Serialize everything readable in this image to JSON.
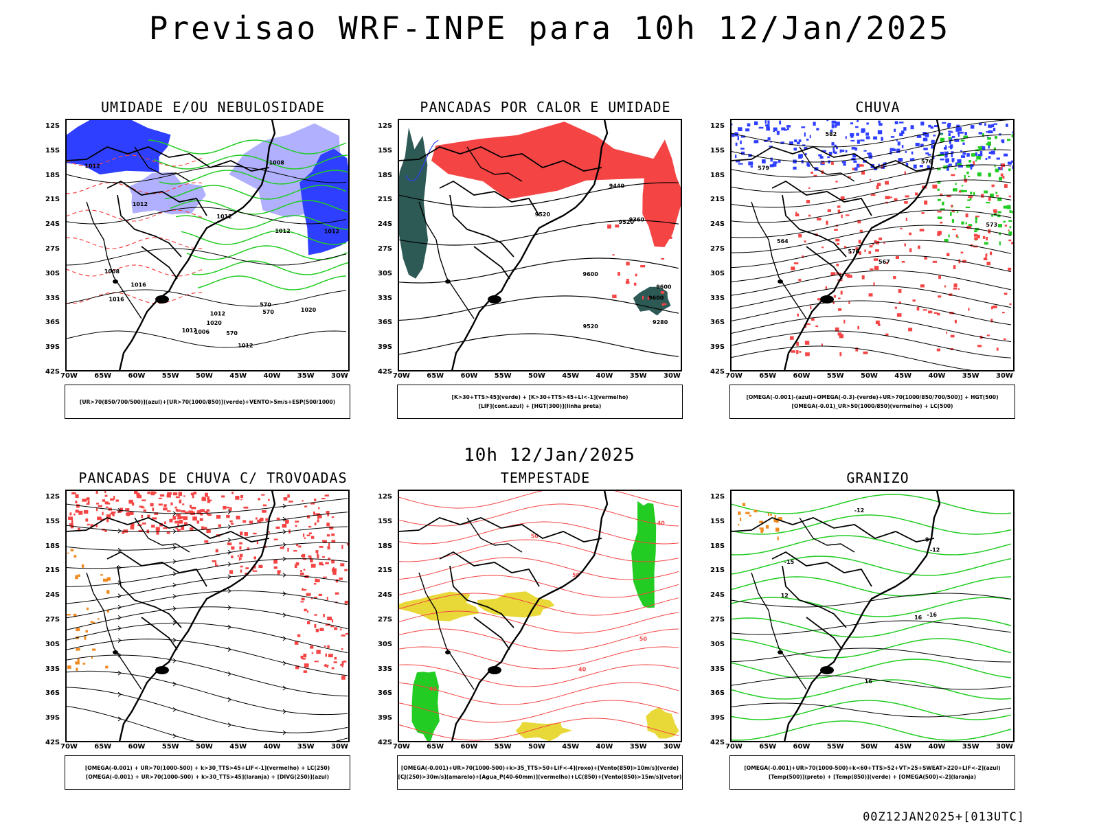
{
  "main_title": "Previsao WRF-INPE  para 10h 12/Jan/2025",
  "mid_time": "10h 12/Jan/2025",
  "footer_stamp": "00Z12JAN2025+[013UTC]",
  "axes": {
    "lat_labels": [
      "12S",
      "15S",
      "18S",
      "21S",
      "24S",
      "27S",
      "30S",
      "33S",
      "36S",
      "39S",
      "42S"
    ],
    "lon_labels": [
      "70W",
      "65W",
      "60W",
      "55W",
      "50W",
      "45W",
      "40W",
      "35W",
      "30W"
    ]
  },
  "colors": {
    "red": "#f44444",
    "green": "#22cc22",
    "blue": "#2f3fff",
    "lavender": "#b0b0ff",
    "yellow": "#e8d838",
    "teal": "#2d5a55",
    "orange": "#f08a20"
  },
  "panels": [
    {
      "title": "UMIDADE E/OU NEBULOSIDADE",
      "legend": [
        "[UR>70(850/700/500)](azul)+[UR>70(1000/850)](verde)+VENTO>5m/s+ESP(500/1000)"
      ],
      "contour_labels": [
        "1012",
        "1012",
        "1012",
        "1012",
        "1012",
        "1016",
        "1020",
        "1008",
        "1012",
        "1012",
        "1016",
        "1020",
        "1006",
        "1012",
        "1008",
        "570",
        "570",
        "570"
      ]
    },
    {
      "title": "PANCADAS POR CALOR E UMIDADE",
      "legend": [
        "[K>30+TTS>45](verde)  +  [K>30+TTS>45+LI<-1](vermelho)",
        "[LIF](cont.azul)  +  [HGT(300)](linha preta)"
      ],
      "contour_labels": [
        "9600",
        "9600",
        "9520",
        "9600",
        "9520",
        "9440",
        "9360",
        "9520",
        "9280"
      ]
    },
    {
      "title": "CHUVA",
      "legend": [
        "[OMEGA(-0.001)-(azul)+OMEGA(-0.3)-(verde)+UR>70(1000/850/700/500)]  +  HGT(500)",
        "[OMEGA(-0.01)_UR>50(1000/850)(vermelho)  +  LC(500)"
      ],
      "contour_labels": [
        "582",
        "576",
        "573",
        "570",
        "567",
        "564",
        "579"
      ]
    },
    {
      "title": "PANCADAS DE CHUVA C/ TROVOADAS",
      "legend": [
        "[OMEGA(-0.001) + UR>70(1000-500) + k>30_TTS>45+LIF<-1](vermelho) + LC(250)",
        "[OMEGA(-0.001) + UR>70(1000-500) + k>30_TTS>45](laranja) + [DIVG(250)](azul)"
      ],
      "contour_labels": []
    },
    {
      "title": "TEMPESTADE",
      "legend": [
        "[OMEGA(-0.001)+UR>70(1000-500)+k>35_TTS>50+LIF<-4](roxo)+[Vento(850)>10m/s](verde)",
        "[CJ(250)>30m/s](amarelo)+[Agua_P(40-60mm)](vermelho)+LC(850)+[Vento(850)>15m/s](vetor)"
      ],
      "contour_labels": [
        "50",
        "40",
        "40",
        "40",
        "50",
        "50"
      ]
    },
    {
      "title": "GRANIZO",
      "legend": [
        "[OMEGA(-0.001)+UR>70(1000-500)+k<60+TTS>52+VT>25+SWEAT>220+LIF<-2](azul)",
        "[Temp(500)](preto)  +  [Temp(850)](verde)  +  [OMEGA(500)<-2](laranja)"
      ],
      "contour_labels": [
        "-8",
        "-12",
        "-12",
        "-15",
        "-16",
        "12",
        "16",
        "16"
      ]
    }
  ]
}
